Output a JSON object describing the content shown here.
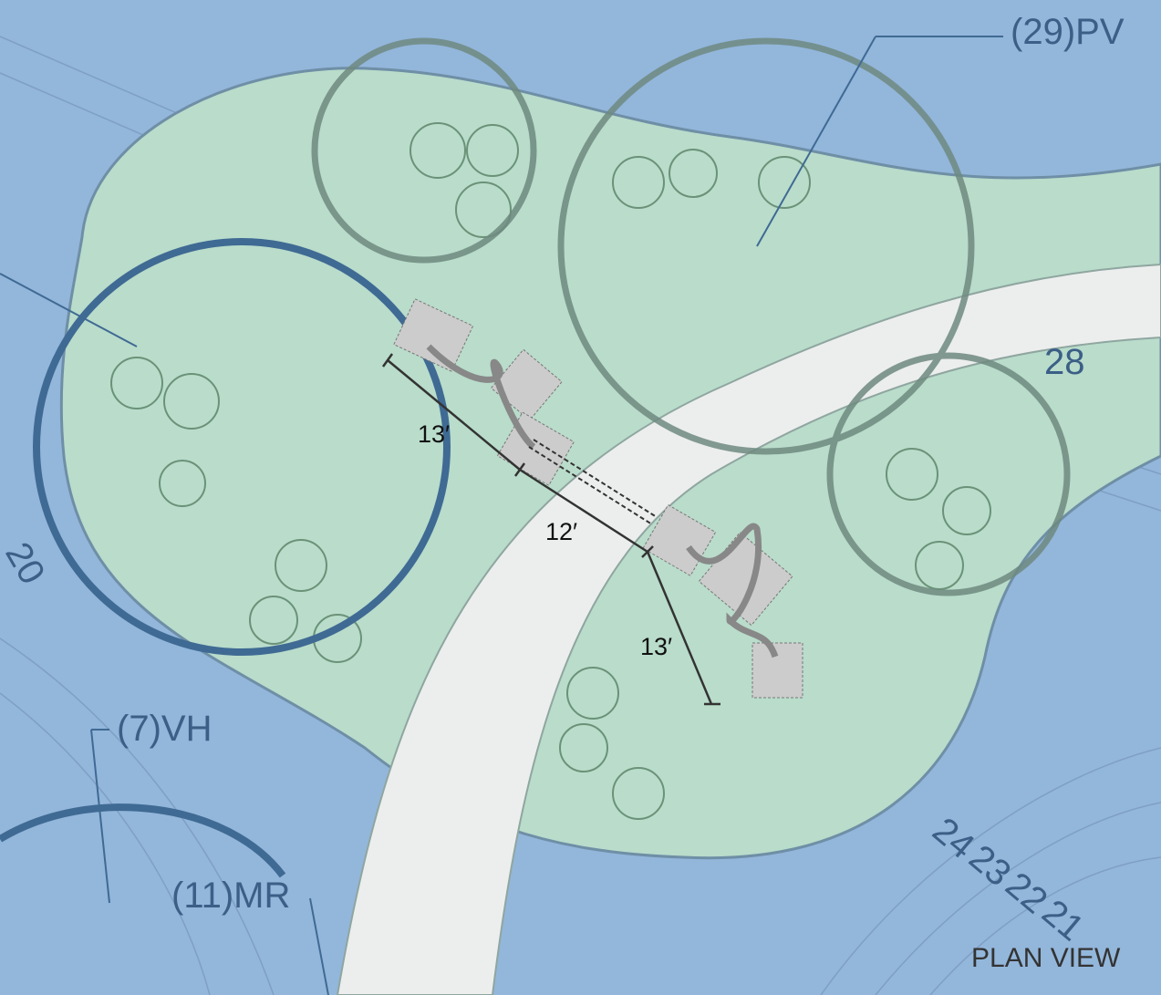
{
  "plant_tags": [
    "(29)PV",
    "(7)VH",
    "(11)MR"
  ],
  "contour_labels": [
    "28",
    "24",
    "23",
    "22",
    "21",
    "20"
  ],
  "dimensions": [
    "13′",
    "12′",
    "13′"
  ],
  "caption": "PLAN VIEW"
}
